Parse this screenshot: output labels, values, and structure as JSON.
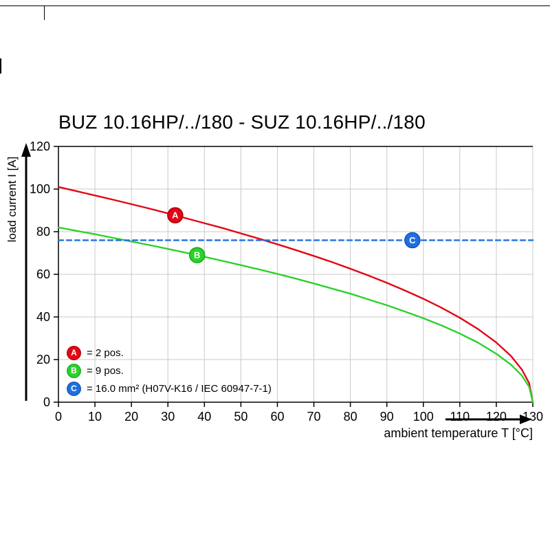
{
  "title": "BUZ 10.16HP/../180 - SUZ 10.16HP/../180",
  "axes": {
    "y_label": "load current I [A]",
    "x_label": "ambient temperature T [°C]"
  },
  "legend": [
    {
      "letter": "A",
      "label": "= 2 pos.",
      "color": "#e30613"
    },
    {
      "letter": "B",
      "label": "= 9 pos.",
      "color": "#2bd22b"
    },
    {
      "letter": "C",
      "label": "= 16.0 mm² (H07V-K16 / IEC 60947-7-1)",
      "color": "#1f6fe0"
    }
  ],
  "chart_data": {
    "type": "line",
    "title": "BUZ 10.16HP/../180 - SUZ 10.16HP/../180",
    "xlabel": "ambient temperature T [°C]",
    "ylabel": "load current I [A]",
    "xlim": [
      0,
      130
    ],
    "ylim": [
      0,
      120
    ],
    "x_ticks": [
      0,
      10,
      20,
      30,
      40,
      50,
      60,
      70,
      80,
      90,
      100,
      110,
      120,
      130
    ],
    "y_ticks": [
      0,
      20,
      40,
      60,
      80,
      100,
      120
    ],
    "grid": true,
    "grid_color": "#c9c9c9",
    "legend_position": "bottom-left-inside",
    "series": [
      {
        "name": "A",
        "label": "2 pos.",
        "color": "#e30613",
        "style": "solid",
        "points": [
          [
            0,
            101
          ],
          [
            5,
            99
          ],
          [
            10,
            97
          ],
          [
            15,
            95
          ],
          [
            20,
            92.9
          ],
          [
            25,
            90.8
          ],
          [
            30,
            88.6
          ],
          [
            35,
            86.3
          ],
          [
            40,
            84
          ],
          [
            45,
            81.7
          ],
          [
            50,
            79.2
          ],
          [
            55,
            76.7
          ],
          [
            60,
            74.1
          ],
          [
            65,
            71.4
          ],
          [
            70,
            68.6
          ],
          [
            75,
            65.7
          ],
          [
            80,
            62.6
          ],
          [
            85,
            59.4
          ],
          [
            90,
            56
          ],
          [
            95,
            52.4
          ],
          [
            100,
            48.5
          ],
          [
            105,
            44.3
          ],
          [
            110,
            39.6
          ],
          [
            115,
            34.3
          ],
          [
            120,
            28
          ],
          [
            124,
            21.7
          ],
          [
            127,
            15.3
          ],
          [
            129,
            8.9
          ],
          [
            130,
            0
          ]
        ]
      },
      {
        "name": "B",
        "label": "9 pos.",
        "color": "#2bd22b",
        "style": "solid",
        "points": [
          [
            0,
            82
          ],
          [
            5,
            80.4
          ],
          [
            10,
            78.8
          ],
          [
            15,
            77.1
          ],
          [
            20,
            75.4
          ],
          [
            25,
            73.7
          ],
          [
            30,
            71.9
          ],
          [
            35,
            70.1
          ],
          [
            40,
            68.2
          ],
          [
            45,
            66.3
          ],
          [
            50,
            64.3
          ],
          [
            55,
            62.3
          ],
          [
            60,
            60.2
          ],
          [
            65,
            58
          ],
          [
            70,
            55.7
          ],
          [
            75,
            53.3
          ],
          [
            80,
            50.9
          ],
          [
            85,
            48.2
          ],
          [
            90,
            45.5
          ],
          [
            95,
            42.5
          ],
          [
            100,
            39.4
          ],
          [
            105,
            36
          ],
          [
            110,
            32.2
          ],
          [
            115,
            27.9
          ],
          [
            120,
            22.7
          ],
          [
            124,
            17.6
          ],
          [
            127,
            12.5
          ],
          [
            129,
            7.2
          ],
          [
            130,
            0
          ]
        ]
      },
      {
        "name": "C",
        "label": "16.0 mm² (H07V-K16 / IEC 60947-7-1)",
        "color": "#1f6fe0",
        "style": "dashed",
        "dash": "7 5",
        "points": [
          [
            0,
            76
          ],
          [
            130,
            76
          ]
        ]
      }
    ],
    "markers": [
      {
        "letter": "A",
        "x": 32,
        "y": 87.7,
        "color": "#e30613",
        "edge": "#a6000b"
      },
      {
        "letter": "B",
        "x": 38,
        "y": 69.0,
        "color": "#2bd22b",
        "edge": "#12a812"
      },
      {
        "letter": "C",
        "x": 97,
        "y": 76.0,
        "color": "#1f6fe0",
        "edge": "#0f4fc0"
      }
    ]
  }
}
